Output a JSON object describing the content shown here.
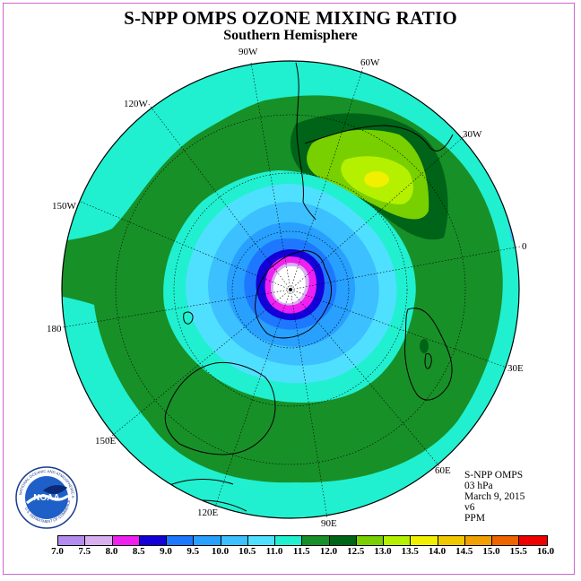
{
  "title": "S-NPP OMPS OZONE MIXING RATIO",
  "subtitle": "Southern Hemisphere",
  "longitude_labels": {
    "lon_90w": "90W",
    "lon_60w": "60W",
    "lon_30w": "30W",
    "lon_0": "0",
    "lon_30e": "30E",
    "lon_60e": "60E",
    "lon_90e": "90E",
    "lon_120e": "120E",
    "lon_150e": "150E",
    "lon_180": "180",
    "lon_150w": "150W",
    "lon_120w": "120W"
  },
  "info": {
    "instrument": "S-NPP OMPS",
    "level": "03 hPa",
    "date": "March 9, 2015",
    "version": "v6",
    "units": "PPM"
  },
  "logo": {
    "text": "NOAA",
    "ring_text": "NATIONAL OCEANIC AND ATMOSPHERIC ADMINISTRATION",
    "ring_text_bottom": "U.S. DEPARTMENT OF COMMERCE"
  },
  "colorbar": {
    "labels": [
      "7.0",
      "7.5",
      "8.0",
      "8.5",
      "9.0",
      "9.5",
      "10.0",
      "10.5",
      "11.0",
      "11.5",
      "12.0",
      "12.5",
      "13.0",
      "13.5",
      "14.0",
      "14.5",
      "15.0",
      "15.5",
      "16.0"
    ],
    "colors": [
      "#b48cf0",
      "#d8b0f0",
      "#f020f0",
      "#1400d8",
      "#1e78ff",
      "#28a0ff",
      "#3cc0ff",
      "#50e0ff",
      "#20f0d0",
      "#189028",
      "#006418",
      "#78d000",
      "#b4f000",
      "#f0f000",
      "#f0c800",
      "#f0a000",
      "#f06400",
      "#f00000",
      "#8c5a3c"
    ]
  },
  "map": {
    "outer_color": "#20f0d0",
    "land_color": "#000000"
  }
}
